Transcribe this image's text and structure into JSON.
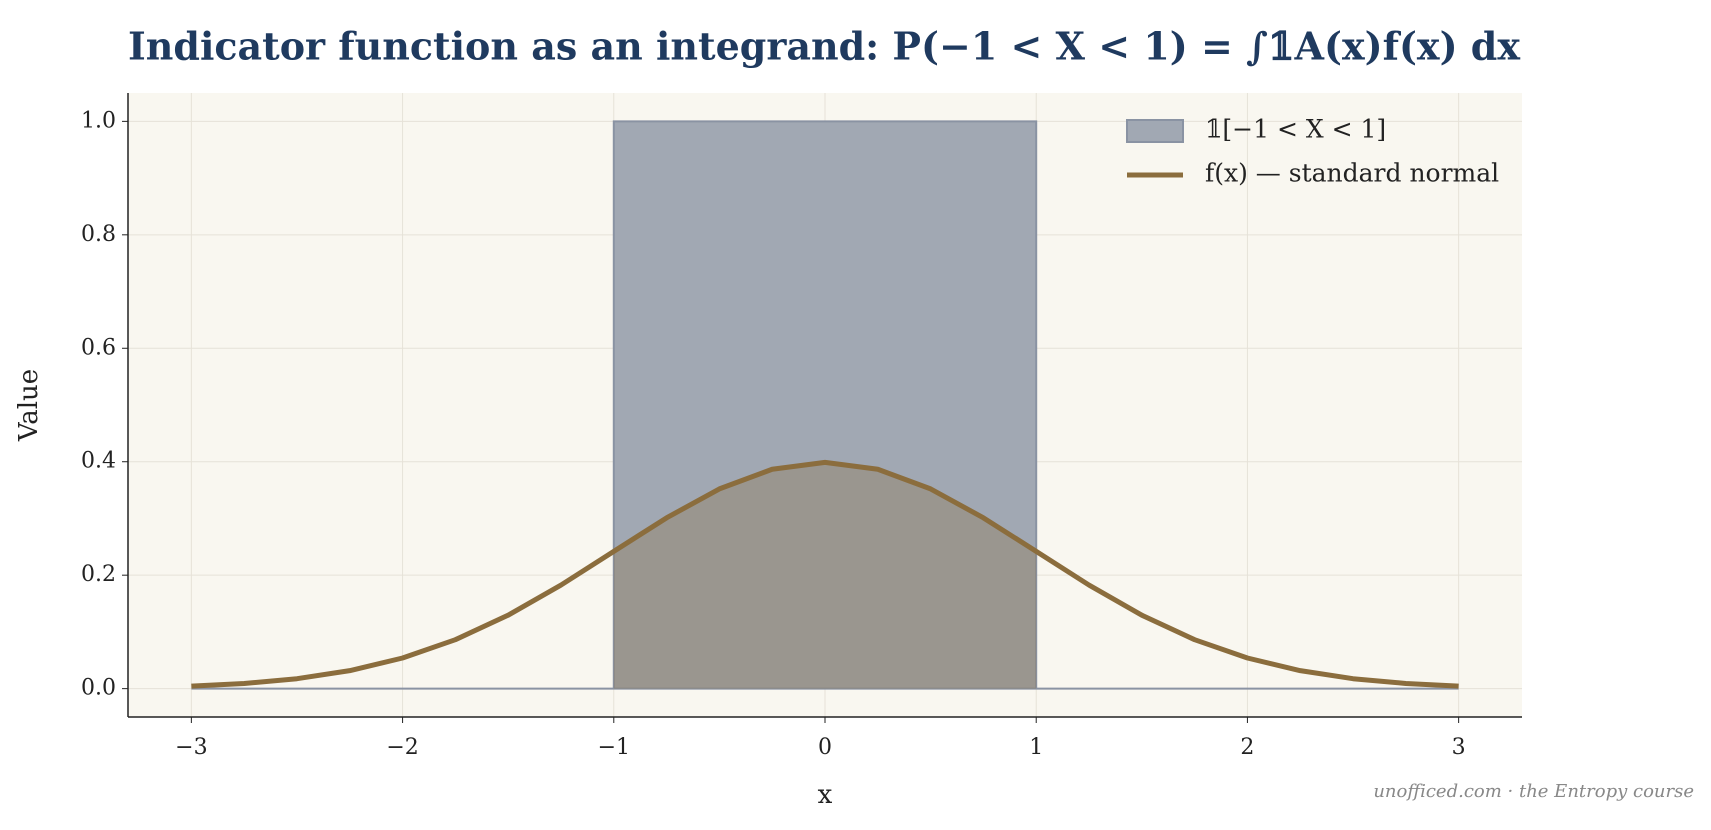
{
  "chart_data": {
    "type": "line",
    "title": "Indicator function as an integrand: P(−1 < X < 1) = ∫𝟙A(x)f(x) dx",
    "x_label": "x",
    "y_label": "Value",
    "annotation": "unofficed.com · the Entropy course",
    "xlim": [
      -3.3,
      3.3
    ],
    "ylim": [
      -0.05,
      1.05
    ],
    "xticks": [
      {
        "value": -3,
        "label": "−3"
      },
      {
        "value": -2,
        "label": "−2"
      },
      {
        "value": -1,
        "label": "−1"
      },
      0,
      1,
      2,
      3
    ],
    "yticks": [
      {
        "value": 0,
        "label": "0.0"
      },
      0.2,
      0.4,
      0.6,
      0.8,
      {
        "value": 1,
        "label": "1.0"
      }
    ],
    "grid": true,
    "legend": "upper right",
    "background": "#f9f7f0",
    "series": [
      {
        "name": "𝟙[−1 < X < 1]",
        "fill": true,
        "color": "#a1a8b3",
        "edge_color": "#8a93a3",
        "x": [
          -3,
          -1,
          -1,
          1,
          1,
          3
        ],
        "values": [
          0,
          0,
          1,
          1,
          0,
          0
        ]
      },
      {
        "name": "f(x) — standard normal",
        "color": "#8b6d3d",
        "x": [
          -3,
          -2.75,
          -2.5,
          -2.25,
          -2,
          -1.75,
          -1.5,
          -1.25,
          -1,
          -0.75,
          -0.5,
          -0.25,
          0,
          0.25,
          0.5,
          0.75,
          1,
          1.25,
          1.5,
          1.75,
          2,
          2.25,
          2.5,
          2.75,
          3
        ],
        "values": [
          0.0044,
          0.0091,
          0.0175,
          0.0317,
          0.054,
          0.0863,
          0.1295,
          0.1826,
          0.242,
          0.3011,
          0.3521,
          0.3867,
          0.3989,
          0.3867,
          0.3521,
          0.3011,
          0.242,
          0.1826,
          0.1295,
          0.0863,
          0.054,
          0.0317,
          0.0175,
          0.0091,
          0.0044
        ]
      }
    ]
  }
}
